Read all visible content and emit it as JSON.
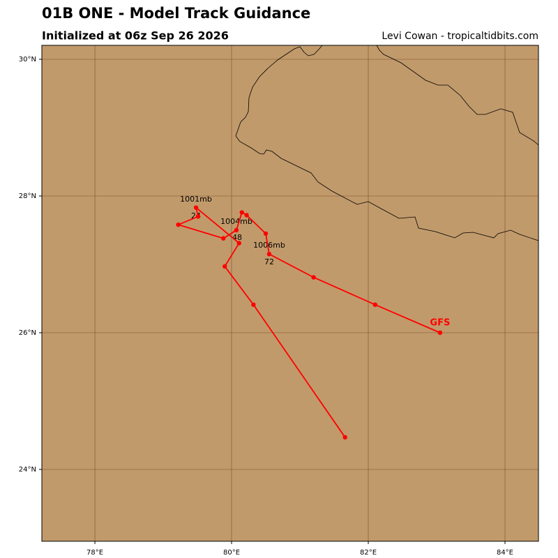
{
  "chart_data": {
    "type": "line",
    "title": "01B ONE - Model Track Guidance",
    "subtitle": "Initialized at 06z Sep 26 2026",
    "credit": "Levi Cowan - tropicaltidbits.com",
    "x": [
      83.05,
      82.1,
      81.2,
      80.55,
      80.5,
      80.22,
      80.15,
      80.07,
      79.88,
      79.22,
      79.51,
      79.48,
      80.11,
      79.9,
      80.32,
      81.66
    ],
    "series": [
      {
        "name": "GFS",
        "color": "#ff0000",
        "values": [
          26.0,
          26.41,
          26.81,
          27.15,
          27.45,
          27.72,
          27.76,
          27.5,
          27.38,
          27.58,
          27.7,
          27.83,
          27.31,
          26.97,
          26.41,
          24.47
        ]
      }
    ],
    "annotations": [
      "1001mb",
      "24",
      "1004mb",
      "48",
      "1006mb",
      "72"
    ],
    "xlim": [
      77.224,
      84.49
    ],
    "ylim": [
      22.949,
      30.204
    ],
    "xticks": [
      {
        "value": 78,
        "label": "78°E"
      },
      {
        "value": 80,
        "label": "80°E"
      },
      {
        "value": 82,
        "label": "82°E"
      },
      {
        "value": 84,
        "label": "84°E"
      }
    ],
    "yticks": [
      {
        "value": 24,
        "label": "24°N"
      },
      {
        "value": 26,
        "label": "26°N"
      },
      {
        "value": 28,
        "label": "28°N"
      },
      {
        "value": 30,
        "label": "30°N"
      }
    ],
    "grid": true
  }
}
